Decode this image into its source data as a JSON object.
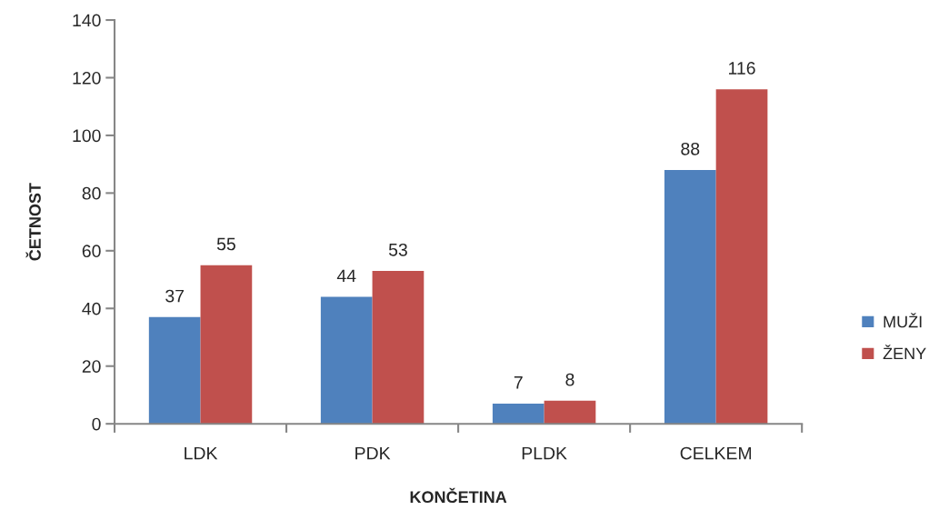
{
  "chart_data": {
    "type": "bar",
    "xlabel": "KONČETINA",
    "ylabel": "ČETNOST",
    "categories": [
      "LDK",
      "PDK",
      "PLDK",
      "CELKEM"
    ],
    "series": [
      {
        "name": "MUŽI",
        "color": "#4f81bd",
        "values": [
          37,
          44,
          7,
          88
        ]
      },
      {
        "name": "ŽENY",
        "color": "#c0504d",
        "values": [
          55,
          53,
          8,
          116
        ]
      }
    ],
    "ylim": [
      0,
      140
    ],
    "yticks": [
      0,
      20,
      40,
      60,
      80,
      100,
      120,
      140
    ],
    "data_labels": true,
    "legend": "right",
    "grid": false
  }
}
